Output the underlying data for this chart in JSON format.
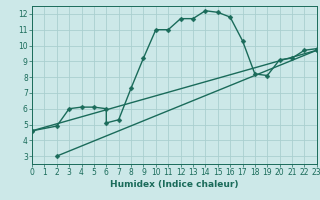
{
  "title": "",
  "xlabel": "Humidex (Indice chaleur)",
  "bg_color": "#cce8e8",
  "grid_color": "#aacfcf",
  "line_color": "#1a6b5a",
  "xlim": [
    0,
    23
  ],
  "ylim": [
    2.5,
    12.5
  ],
  "xticks": [
    0,
    1,
    2,
    3,
    4,
    5,
    6,
    7,
    8,
    9,
    10,
    11,
    12,
    13,
    14,
    15,
    16,
    17,
    18,
    19,
    20,
    21,
    22,
    23
  ],
  "yticks": [
    3,
    4,
    5,
    6,
    7,
    8,
    9,
    10,
    11,
    12
  ],
  "curve1_x": [
    0,
    2,
    3,
    4,
    5,
    6,
    6,
    7,
    8,
    9,
    10,
    11,
    12,
    13,
    14,
    15,
    16,
    17,
    18,
    19,
    20,
    21,
    22,
    23
  ],
  "curve1_y": [
    4.6,
    4.9,
    6.0,
    6.1,
    6.1,
    6.0,
    5.1,
    5.3,
    7.3,
    9.2,
    11.0,
    11.0,
    11.7,
    11.7,
    12.2,
    12.1,
    11.8,
    10.3,
    8.2,
    8.1,
    9.1,
    9.2,
    9.7,
    9.8
  ],
  "curve2_x": [
    0,
    23
  ],
  "curve2_y": [
    4.6,
    9.7
  ],
  "curve3_x": [
    2,
    23
  ],
  "curve3_y": [
    3.0,
    9.7
  ],
  "marker_size": 2.5,
  "line_width": 1.0,
  "tick_fontsize": 5.5,
  "xlabel_fontsize": 6.5
}
